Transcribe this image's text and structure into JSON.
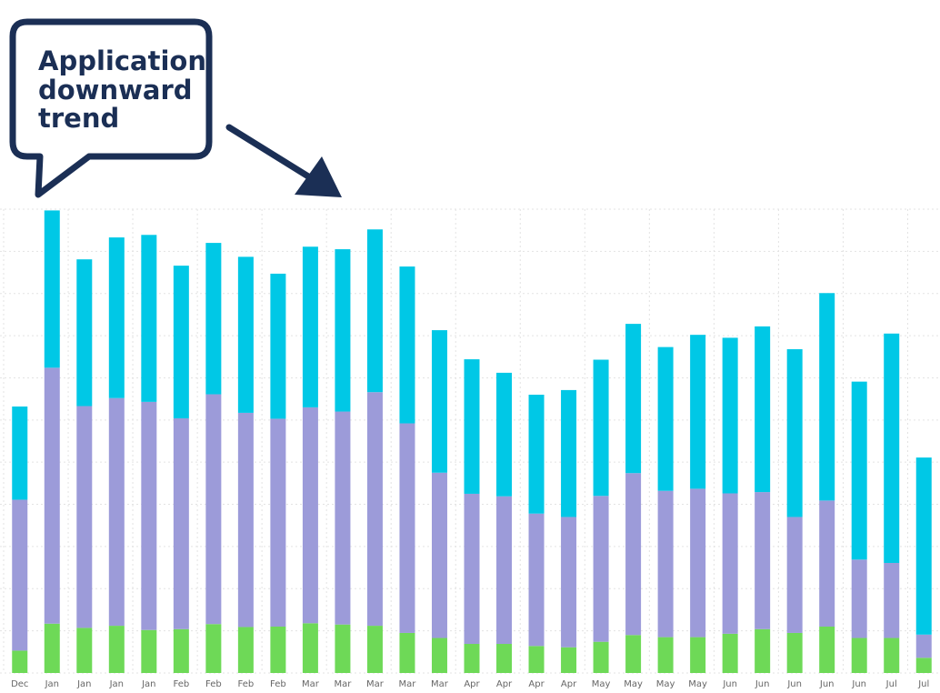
{
  "callout": {
    "lines": [
      "Application",
      "downward",
      "trend"
    ],
    "color": "#1b2f55"
  },
  "colors": {
    "series_green": "#6ed957",
    "series_purple": "#9c9bd9",
    "series_cyan": "#00c8e6",
    "grid": "#e3e3e3",
    "tick_text": "#666666"
  },
  "chart_data": {
    "type": "bar",
    "stacked": true,
    "grid": true,
    "legend": "none",
    "ylim": [
      0,
      110
    ],
    "categories": [
      "Dec",
      "Jan",
      "Jan",
      "Jan",
      "Jan",
      "Feb",
      "Feb",
      "Feb",
      "Feb",
      "Mar",
      "Mar",
      "Mar",
      "Mar",
      "Mar",
      "Apr",
      "Apr",
      "Apr",
      "Apr",
      "May",
      "May",
      "May",
      "May",
      "Jun",
      "Jun",
      "Jun",
      "Jun",
      "Jun",
      "Jul",
      "Jul"
    ],
    "series": [
      {
        "color": "#6ed957",
        "values": [
          5.3,
          11.7,
          10.7,
          11.2,
          10.2,
          10.4,
          11.6,
          10.9,
          11.0,
          11.8,
          11.5,
          11.2,
          9.5,
          8.3,
          6.9,
          6.9,
          6.4,
          6.1,
          7.4,
          9.0,
          8.5,
          8.5,
          9.3,
          10.4,
          9.5,
          11.0,
          8.3,
          8.3,
          3.6
        ]
      },
      {
        "color": "#9c9bd9",
        "values": [
          35.8,
          60.7,
          52.6,
          54.0,
          54.1,
          50.0,
          54.5,
          50.8,
          49.3,
          51.2,
          50.5,
          55.4,
          49.7,
          39.2,
          35.6,
          35.0,
          31.4,
          30.9,
          34.6,
          38.4,
          34.7,
          35.2,
          33.3,
          32.5,
          27.5,
          29.9,
          18.6,
          17.8,
          5.5
        ]
      },
      {
        "color": "#00c8e6",
        "values": [
          22.1,
          37.3,
          34.8,
          38.1,
          39.6,
          36.2,
          35.9,
          37.0,
          34.4,
          38.1,
          38.5,
          38.6,
          37.2,
          33.8,
          31.9,
          29.3,
          28.2,
          30.1,
          32.3,
          35.4,
          34.1,
          36.5,
          36.9,
          39.3,
          39.8,
          49.2,
          42.2,
          54.4,
          42.0
        ]
      }
    ]
  }
}
